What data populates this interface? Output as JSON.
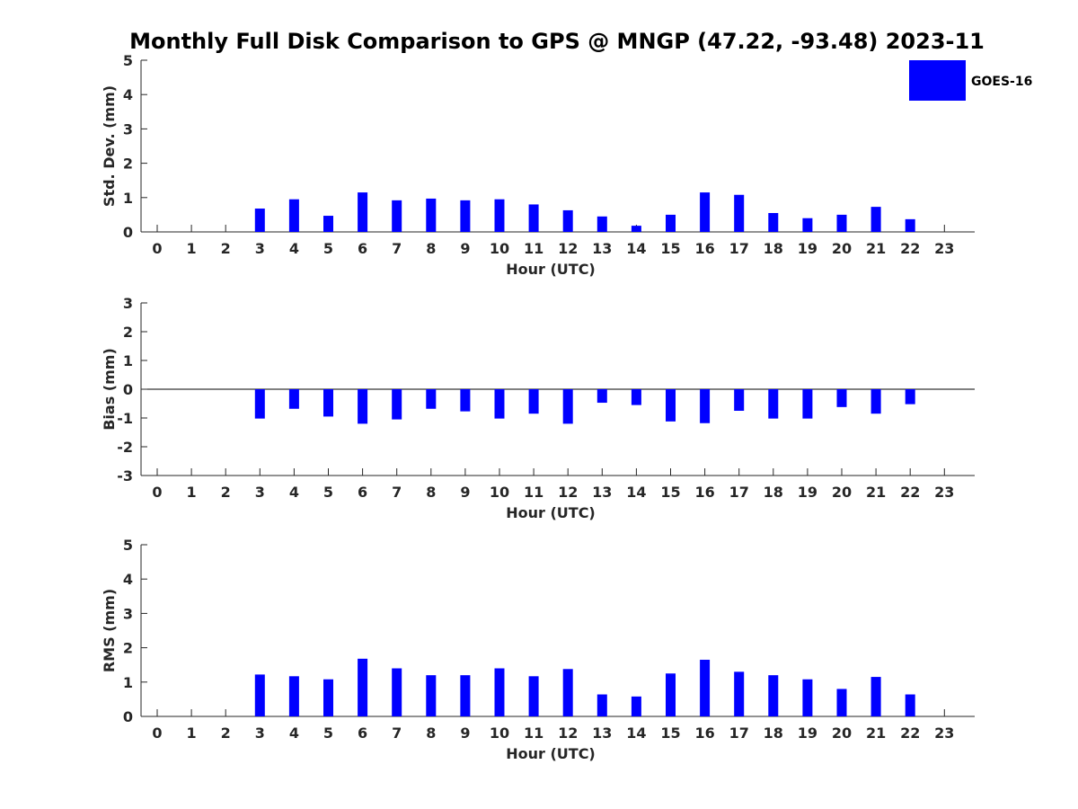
{
  "title": "Monthly Full Disk Comparison to GPS @ MNGP (47.22, -93.48) 2023-11",
  "legend": {
    "label": "GOES-16",
    "color": "#0000ff"
  },
  "chart_data": [
    {
      "type": "bar",
      "title": "Monthly Full Disk Comparison to GPS @ MNGP (47.22, -93.48) 2023-11",
      "xlabel": "Hour (UTC)",
      "ylabel": "Std. Dev. (mm)",
      "categories": [
        "0",
        "1",
        "2",
        "3",
        "4",
        "5",
        "6",
        "7",
        "8",
        "9",
        "10",
        "11",
        "12",
        "13",
        "14",
        "15",
        "16",
        "17",
        "18",
        "19",
        "20",
        "21",
        "22",
        "23"
      ],
      "ylim": [
        0,
        5
      ],
      "yticks": [
        0,
        1,
        2,
        3,
        4,
        5
      ],
      "zero_line": false,
      "series": [
        {
          "name": "GOES-16",
          "values": [
            null,
            null,
            null,
            0.68,
            0.95,
            0.47,
            1.15,
            0.92,
            0.97,
            0.92,
            0.95,
            0.8,
            0.63,
            0.45,
            0.18,
            0.5,
            1.15,
            1.08,
            0.55,
            0.4,
            0.5,
            0.73,
            0.37,
            null
          ]
        }
      ]
    },
    {
      "type": "bar",
      "title": "",
      "xlabel": "Hour (UTC)",
      "ylabel": "Bias (mm)",
      "categories": [
        "0",
        "1",
        "2",
        "3",
        "4",
        "5",
        "6",
        "7",
        "8",
        "9",
        "10",
        "11",
        "12",
        "13",
        "14",
        "15",
        "16",
        "17",
        "18",
        "19",
        "20",
        "21",
        "22",
        "23"
      ],
      "ylim": [
        -3,
        3
      ],
      "yticks": [
        -3,
        -2,
        -1,
        0,
        1,
        2,
        3
      ],
      "zero_line": true,
      "series": [
        {
          "name": "GOES-16",
          "values": [
            null,
            null,
            null,
            -1.02,
            -0.68,
            -0.95,
            -1.2,
            -1.05,
            -0.68,
            -0.77,
            -1.02,
            -0.85,
            -1.2,
            -0.47,
            -0.55,
            -1.12,
            -1.18,
            -0.75,
            -1.02,
            -1.02,
            -0.62,
            -0.85,
            -0.52,
            null
          ]
        }
      ]
    },
    {
      "type": "bar",
      "title": "",
      "xlabel": "Hour (UTC)",
      "ylabel": "RMS (mm)",
      "categories": [
        "0",
        "1",
        "2",
        "3",
        "4",
        "5",
        "6",
        "7",
        "8",
        "9",
        "10",
        "11",
        "12",
        "13",
        "14",
        "15",
        "16",
        "17",
        "18",
        "19",
        "20",
        "21",
        "22",
        "23"
      ],
      "ylim": [
        0,
        5
      ],
      "yticks": [
        0,
        1,
        2,
        3,
        4,
        5
      ],
      "zero_line": false,
      "series": [
        {
          "name": "GOES-16",
          "values": [
            null,
            null,
            null,
            1.22,
            1.17,
            1.08,
            1.68,
            1.4,
            1.2,
            1.2,
            1.4,
            1.17,
            1.38,
            0.64,
            0.58,
            1.25,
            1.65,
            1.3,
            1.2,
            1.08,
            0.8,
            1.15,
            0.64,
            null
          ]
        }
      ]
    }
  ]
}
